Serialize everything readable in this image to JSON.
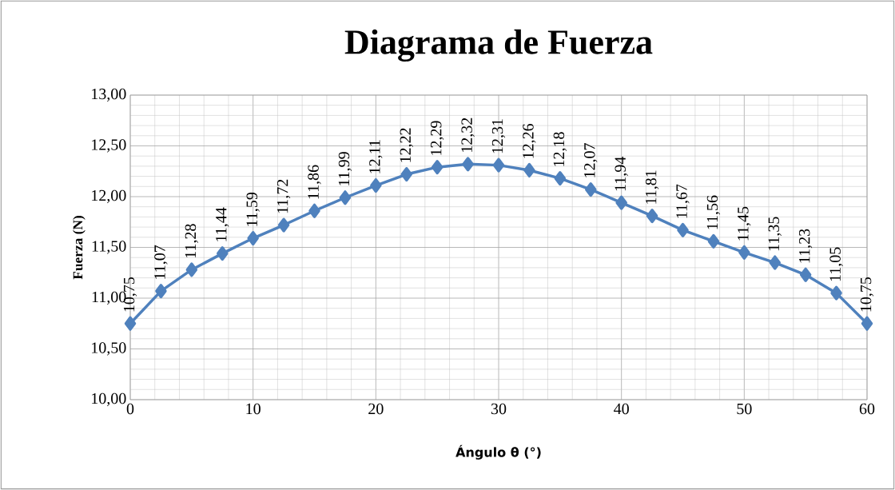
{
  "chart_data": {
    "type": "line",
    "title": "Diagrama de Fuerza",
    "xlabel": "Ángulo θ (°)",
    "ylabel": "Fuerza (N)",
    "x": [
      0,
      2.5,
      5,
      7.5,
      10,
      12.5,
      15,
      17.5,
      20,
      22.5,
      25,
      27.5,
      30,
      32.5,
      35,
      37.5,
      40,
      42.5,
      45,
      47.5,
      50,
      52.5,
      55,
      57.5,
      60
    ],
    "series": [
      {
        "color": "#4f81bd",
        "values": [
          10.75,
          11.07,
          11.28,
          11.44,
          11.59,
          11.72,
          11.86,
          11.99,
          12.11,
          12.22,
          12.29,
          12.32,
          12.31,
          12.26,
          12.18,
          12.07,
          11.94,
          11.81,
          11.67,
          11.56,
          11.45,
          11.35,
          11.23,
          11.05,
          10.75
        ],
        "value_labels": [
          "10,75",
          "11,07",
          "11,28",
          "11,44",
          "11,59",
          "11,72",
          "11,86",
          "11,99",
          "12,11",
          "12,22",
          "12,29",
          "12,32",
          "12,31",
          "12,26",
          "12,18",
          "12,07",
          "11,94",
          "11,81",
          "11,67",
          "11,56",
          "11,45",
          "11,35",
          "11,23",
          "11,05",
          "10,75"
        ]
      }
    ],
    "xlim": [
      0,
      60
    ],
    "xticks": [
      0,
      10,
      20,
      30,
      40,
      50,
      60
    ],
    "ylim": [
      10,
      13
    ],
    "yticks": [
      {
        "value": 10,
        "label": "10,00"
      },
      {
        "value": 10.5,
        "label": "10,50"
      },
      {
        "value": 11,
        "label": "11,00"
      },
      {
        "value": 11.5,
        "label": "11,50"
      },
      {
        "value": 12,
        "label": "12,00"
      },
      {
        "value": 12.5,
        "label": "12,50"
      },
      {
        "value": 13,
        "label": "13,00"
      }
    ],
    "grid": true,
    "marker": "diamond",
    "line_style": "solid"
  }
}
